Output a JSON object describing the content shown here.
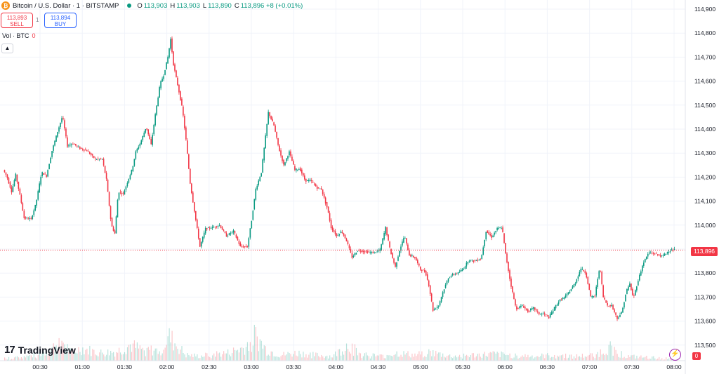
{
  "header": {
    "icon": "bitcoin-icon",
    "title": "Bitcoin / U.S. Dollar · 1 · BITSTAMP",
    "ohlc": [
      {
        "k": "O",
        "v": "113,903"
      },
      {
        "k": "H",
        "v": "113,903"
      },
      {
        "k": "L",
        "v": "113,890"
      },
      {
        "k": "C",
        "v": "113,896 +8 (+0.01%)"
      }
    ],
    "status_color": "#089981"
  },
  "trade": {
    "sell_price": "113,893",
    "sell_label": "SELL",
    "spread": "1",
    "buy_price": "113,894",
    "buy_label": "BUY"
  },
  "volume": {
    "label": "Vol · BTC",
    "value": "0"
  },
  "collapse_icon": "chevron-up-icon",
  "brand": {
    "logo_mark": "17",
    "name": "TradingView"
  },
  "last_price": "113,896",
  "volume_tag": "0",
  "colors": {
    "up": "#089981",
    "down": "#f23645",
    "grid": "#f0f3fa",
    "accent": "#2962ff"
  },
  "chart_data": {
    "type": "candlestick",
    "interval": "1m",
    "y_axis": {
      "ticks": [
        "114,900",
        "114,800",
        "114,700",
        "114,600",
        "114,500",
        "114,400",
        "114,300",
        "114,200",
        "114,100",
        "114,000",
        "113,900",
        "113,800",
        "113,700",
        "113,600",
        "113,500"
      ],
      "range": [
        113480,
        114920
      ]
    },
    "x_axis": {
      "ticks": [
        "00:30",
        "01:00",
        "01:30",
        "02:00",
        "02:30",
        "03:00",
        "03:30",
        "04:00",
        "04:30",
        "05:00",
        "05:30",
        "06:00",
        "06:30",
        "07:00",
        "07:30",
        "08:00"
      ]
    },
    "last_close": 113896,
    "path_points": [
      [
        0,
        114230
      ],
      [
        5,
        114205
      ],
      [
        12,
        114140
      ],
      [
        18,
        114210
      ],
      [
        25,
        114110
      ],
      [
        30,
        114030
      ],
      [
        40,
        114025
      ],
      [
        47,
        114090
      ],
      [
        55,
        114220
      ],
      [
        62,
        114205
      ],
      [
        70,
        114310
      ],
      [
        78,
        114390
      ],
      [
        85,
        114455
      ],
      [
        92,
        114330
      ],
      [
        100,
        114340
      ],
      [
        110,
        114320
      ],
      [
        120,
        114310
      ],
      [
        132,
        114275
      ],
      [
        142,
        114275
      ],
      [
        148,
        114190
      ],
      [
        155,
        114000
      ],
      [
        160,
        113965
      ],
      [
        165,
        114140
      ],
      [
        172,
        114130
      ],
      [
        180,
        114195
      ],
      [
        185,
        114235
      ],
      [
        190,
        114305
      ],
      [
        197,
        114345
      ],
      [
        205,
        114410
      ],
      [
        212,
        114335
      ],
      [
        218,
        114460
      ],
      [
        225,
        114590
      ],
      [
        230,
        114625
      ],
      [
        236,
        114700
      ],
      [
        240,
        114775
      ],
      [
        244,
        114670
      ],
      [
        250,
        114585
      ],
      [
        257,
        114480
      ],
      [
        262,
        114355
      ],
      [
        268,
        114175
      ],
      [
        275,
        114040
      ],
      [
        282,
        113910
      ],
      [
        290,
        113985
      ],
      [
        300,
        113990
      ],
      [
        310,
        114000
      ],
      [
        320,
        113955
      ],
      [
        330,
        113975
      ],
      [
        340,
        113910
      ],
      [
        350,
        113910
      ],
      [
        356,
        114020
      ],
      [
        362,
        114150
      ],
      [
        370,
        114220
      ],
      [
        377,
        114395
      ],
      [
        380,
        114470
      ],
      [
        388,
        114415
      ],
      [
        395,
        114320
      ],
      [
        402,
        114250
      ],
      [
        410,
        114305
      ],
      [
        418,
        114230
      ],
      [
        425,
        114235
      ],
      [
        433,
        114185
      ],
      [
        441,
        114185
      ],
      [
        450,
        114155
      ],
      [
        456,
        114150
      ],
      [
        465,
        114065
      ],
      [
        470,
        113990
      ],
      [
        478,
        113955
      ],
      [
        485,
        113975
      ],
      [
        492,
        113935
      ],
      [
        500,
        113865
      ],
      [
        508,
        113895
      ],
      [
        517,
        113890
      ],
      [
        530,
        113885
      ],
      [
        540,
        113895
      ],
      [
        548,
        113990
      ],
      [
        555,
        113890
      ],
      [
        562,
        113825
      ],
      [
        568,
        113895
      ],
      [
        575,
        113955
      ],
      [
        582,
        113875
      ],
      [
        590,
        113865
      ],
      [
        598,
        113815
      ],
      [
        605,
        113805
      ],
      [
        610,
        113750
      ],
      [
        616,
        113645
      ],
      [
        624,
        113665
      ],
      [
        630,
        113720
      ],
      [
        638,
        113780
      ],
      [
        645,
        113795
      ],
      [
        652,
        113800
      ],
      [
        660,
        113820
      ],
      [
        667,
        113855
      ],
      [
        675,
        113850
      ],
      [
        685,
        113860
      ],
      [
        692,
        113975
      ],
      [
        700,
        113950
      ],
      [
        708,
        113985
      ],
      [
        715,
        113990
      ],
      [
        720,
        113880
      ],
      [
        727,
        113760
      ],
      [
        735,
        113650
      ],
      [
        744,
        113665
      ],
      [
        752,
        113640
      ],
      [
        760,
        113655
      ],
      [
        768,
        113630
      ],
      [
        775,
        113630
      ],
      [
        782,
        113615
      ],
      [
        790,
        113655
      ],
      [
        797,
        113685
      ],
      [
        805,
        113700
      ],
      [
        812,
        113725
      ],
      [
        820,
        113760
      ],
      [
        828,
        113820
      ],
      [
        835,
        113800
      ],
      [
        842,
        113700
      ],
      [
        848,
        113705
      ],
      [
        855,
        113830
      ],
      [
        860,
        113700
      ],
      [
        866,
        113665
      ],
      [
        872,
        113665
      ],
      [
        880,
        113610
      ],
      [
        887,
        113640
      ],
      [
        893,
        113725
      ],
      [
        898,
        113755
      ],
      [
        903,
        113695
      ],
      [
        910,
        113770
      ],
      [
        917,
        113840
      ],
      [
        925,
        113885
      ],
      [
        935,
        113880
      ],
      [
        945,
        113870
      ],
      [
        955,
        113895
      ],
      [
        962,
        113896
      ]
    ],
    "volume_profile": [
      [
        0,
        4
      ],
      [
        20,
        6
      ],
      [
        45,
        10
      ],
      [
        65,
        18
      ],
      [
        82,
        38
      ],
      [
        95,
        14
      ],
      [
        110,
        22
      ],
      [
        135,
        14
      ],
      [
        160,
        16
      ],
      [
        180,
        28
      ],
      [
        195,
        20
      ],
      [
        220,
        18
      ],
      [
        236,
        42
      ],
      [
        260,
        10
      ],
      [
        280,
        8
      ],
      [
        300,
        12
      ],
      [
        320,
        14
      ],
      [
        345,
        24
      ],
      [
        358,
        46
      ],
      [
        375,
        20
      ],
      [
        395,
        10
      ],
      [
        420,
        14
      ],
      [
        445,
        10
      ],
      [
        470,
        8
      ],
      [
        493,
        30
      ],
      [
        510,
        12
      ],
      [
        540,
        8
      ],
      [
        560,
        14
      ],
      [
        590,
        10
      ],
      [
        605,
        16
      ],
      [
        640,
        8
      ],
      [
        670,
        10
      ],
      [
        700,
        12
      ],
      [
        725,
        10
      ],
      [
        760,
        8
      ],
      [
        790,
        10
      ],
      [
        820,
        8
      ],
      [
        845,
        10
      ],
      [
        868,
        24
      ],
      [
        890,
        8
      ],
      [
        920,
        6
      ],
      [
        950,
        4
      ]
    ]
  }
}
